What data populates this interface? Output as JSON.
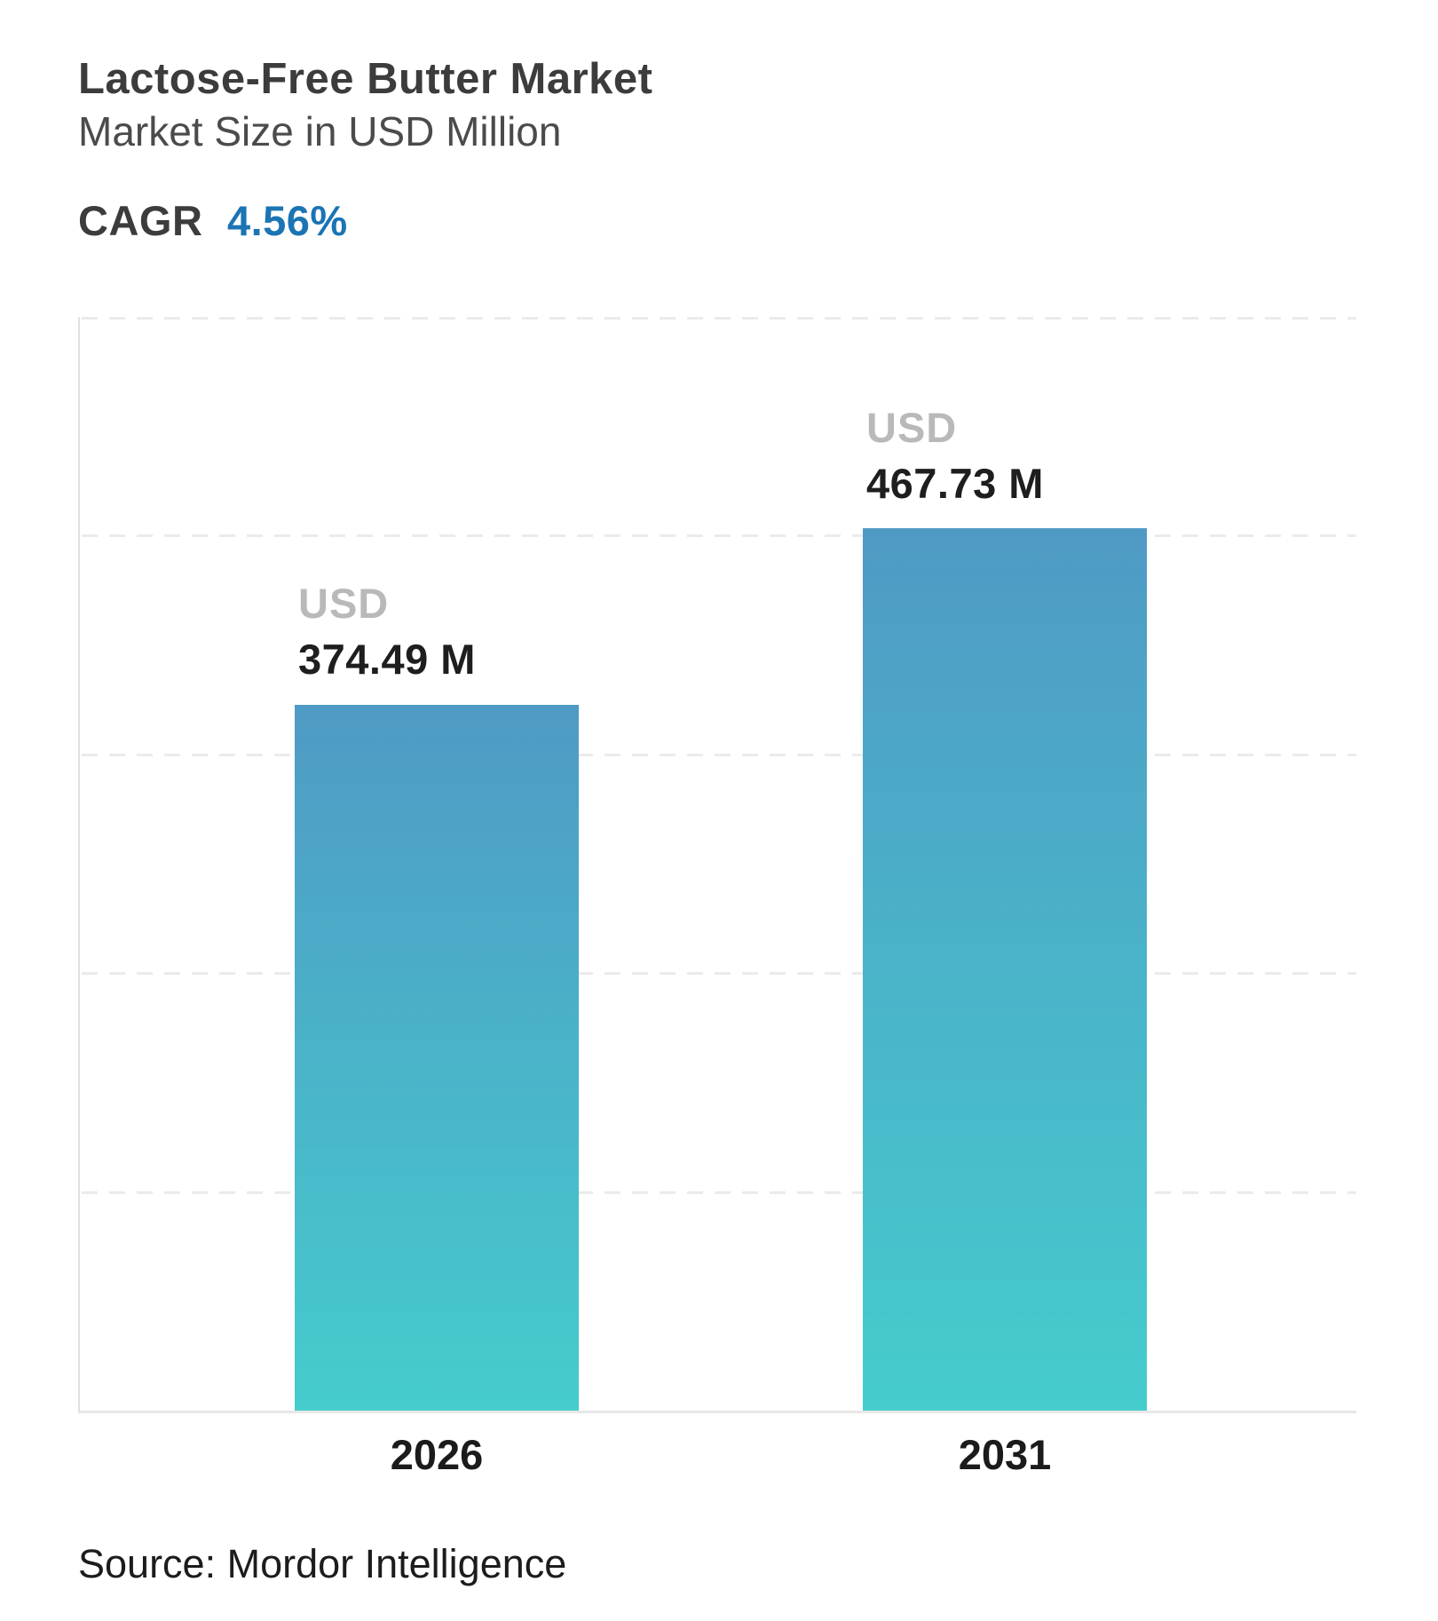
{
  "header": {
    "title": "Lactose-Free Butter Market",
    "subtitle": "Market Size in USD Million",
    "cagr_label": "CAGR",
    "cagr_value": "4.56%"
  },
  "chart_data": {
    "type": "bar",
    "title": "Lactose-Free Butter Market",
    "subtitle": "Market Size in USD Million",
    "unit": "USD Million",
    "categories": [
      "2026",
      "2031"
    ],
    "values": [
      374.49,
      467.73
    ],
    "bars": [
      {
        "category": "2026",
        "currency_label": "USD",
        "value_label": "374.49 M",
        "value": 374.49
      },
      {
        "category": "2031",
        "currency_label": "USD",
        "value_label": "467.73 M",
        "value": 467.73
      }
    ],
    "cagr": "4.56%",
    "xlabel": "",
    "ylabel": "",
    "ylim": [
      0,
      580
    ],
    "grid": "horizontal-dashed",
    "legend": "none"
  },
  "footer": {
    "source": "Source: Mordor Intelligence"
  },
  "colors": {
    "accent_blue": "#1b74b4",
    "bar_gradient_top": "#4f9ac5",
    "bar_gradient_bottom": "#45cccd",
    "title_text": "#3c3c3c",
    "subtitle_text": "#4b4b4b",
    "usd_label_gray": "#b9b9b9",
    "value_text": "#1e1e1e",
    "gridline": "#ebebeb",
    "axis_line": "#e0e0e0"
  }
}
